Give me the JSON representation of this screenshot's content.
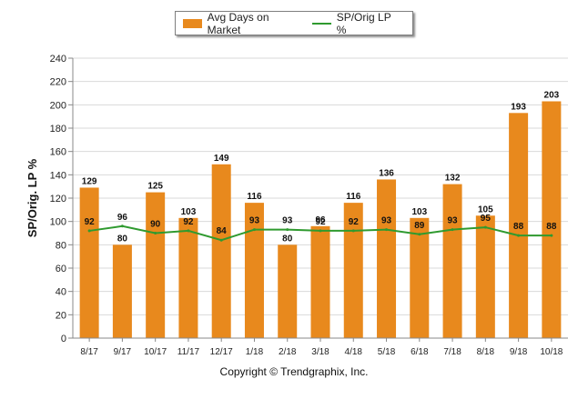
{
  "chart_data": {
    "type": "bar",
    "categories": [
      "8/17",
      "9/17",
      "10/17",
      "11/17",
      "12/17",
      "1/18",
      "2/18",
      "3/18",
      "4/18",
      "5/18",
      "6/18",
      "7/18",
      "8/18",
      "9/18",
      "10/18"
    ],
    "series": [
      {
        "name": "Avg Days on Market",
        "type": "bar",
        "color": "#e8891d",
        "values": [
          129,
          80,
          125,
          103,
          149,
          116,
          80,
          96,
          116,
          136,
          103,
          132,
          105,
          193,
          203
        ]
      },
      {
        "name": "SP/Orig LP %",
        "type": "line",
        "color": "#2f9a2f",
        "values": [
          92,
          96,
          90,
          92,
          84,
          93,
          93,
          92,
          92,
          93,
          89,
          93,
          95,
          88,
          88
        ]
      }
    ],
    "ylabel": "SP/Orig. LP %",
    "xlabel": "",
    "ylim": [
      0,
      240
    ],
    "yticks": [
      0,
      20,
      40,
      60,
      80,
      100,
      120,
      140,
      160,
      180,
      200,
      220,
      240
    ],
    "grid": true,
    "legend_position": "top-center"
  },
  "footer": {
    "copyright": "Copyright © Trendgraphix, Inc."
  }
}
